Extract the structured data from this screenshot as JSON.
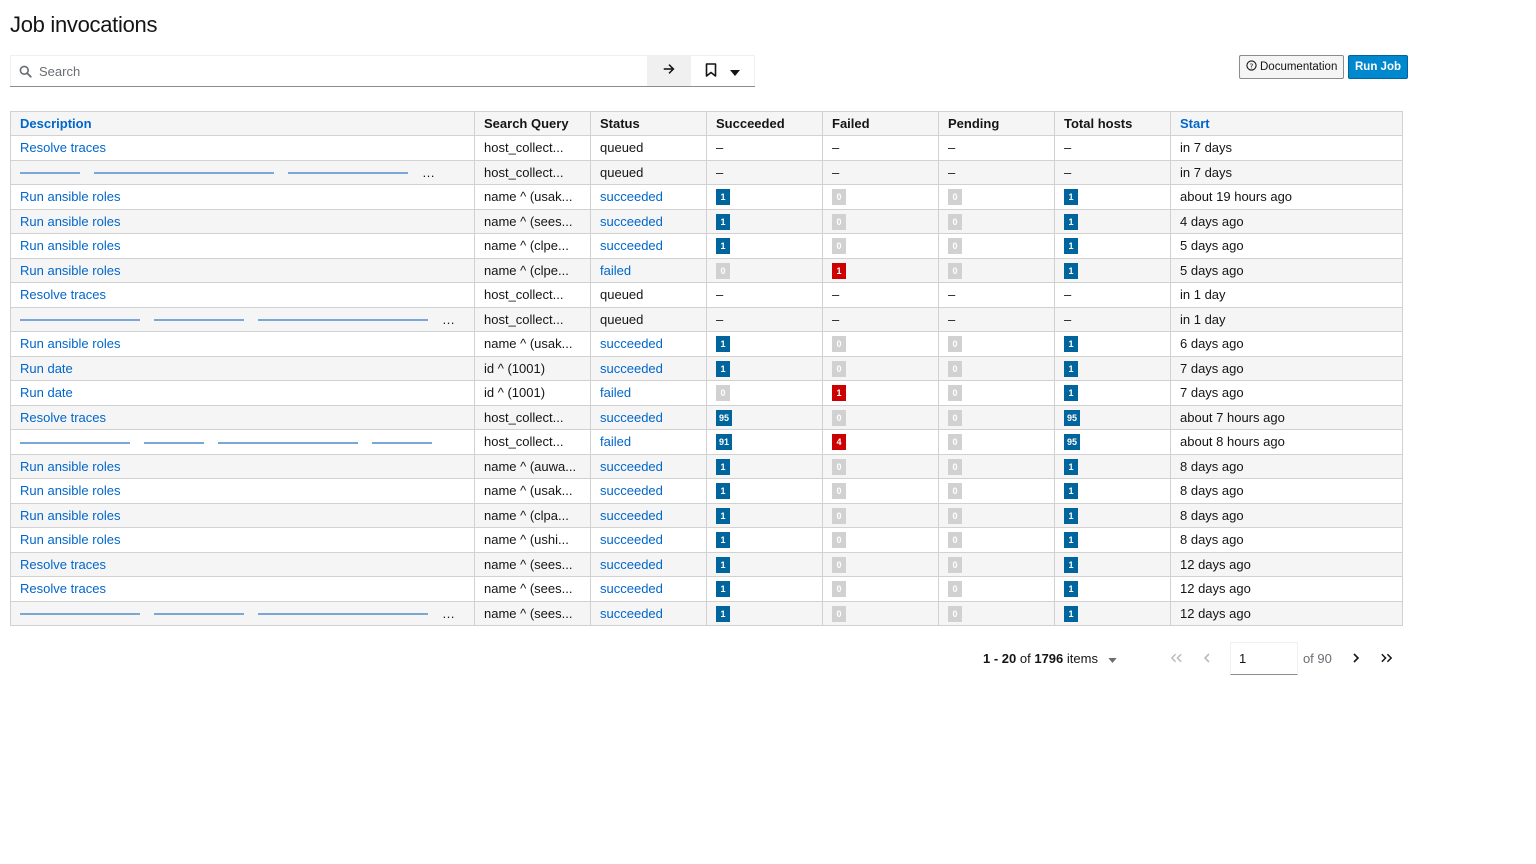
{
  "page": {
    "title": "Job invocations"
  },
  "search": {
    "placeholder": "Search"
  },
  "buttons": {
    "documentation": "Documentation",
    "run_job": "Run Job"
  },
  "table": {
    "columns": [
      "Description",
      "Search Query",
      "Status",
      "Succeeded",
      "Failed",
      "Pending",
      "Total hosts",
      "Start"
    ],
    "sortable_columns": [
      "Description",
      "Start"
    ],
    "rows": [
      {
        "description": "Resolve traces",
        "query": "host_collect...",
        "status": "queued",
        "succeeded": "–",
        "failed": "–",
        "pending": "–",
        "total": "–",
        "start": "in 7 days"
      },
      {
        "description": "",
        "redacted": true,
        "query": "host_collect...",
        "status": "queued",
        "succeeded": "–",
        "failed": "–",
        "pending": "–",
        "total": "–",
        "start": "in 7 days"
      },
      {
        "description": "Run ansible roles",
        "query": "name ^ (usak...",
        "status": "succeeded",
        "succeeded": "1",
        "failed": "0",
        "pending": "0",
        "total": "1",
        "start": "about 19 hours ago"
      },
      {
        "description": "Run ansible roles",
        "query": "name ^ (sees...",
        "status": "succeeded",
        "succeeded": "1",
        "failed": "0",
        "pending": "0",
        "total": "1",
        "start": "4 days ago"
      },
      {
        "description": "Run ansible roles",
        "query": "name ^ (clpe...",
        "status": "succeeded",
        "succeeded": "1",
        "failed": "0",
        "pending": "0",
        "total": "1",
        "start": "5 days ago"
      },
      {
        "description": "Run ansible roles",
        "query": "name ^ (clpe...",
        "status": "failed",
        "succeeded": "0",
        "failed": "1",
        "pending": "0",
        "total": "1",
        "start": "5 days ago"
      },
      {
        "description": "Resolve traces",
        "query": "host_collect...",
        "status": "queued",
        "succeeded": "–",
        "failed": "–",
        "pending": "–",
        "total": "–",
        "start": "in 1 day"
      },
      {
        "description": "",
        "redacted": true,
        "query": "host_collect...",
        "status": "queued",
        "succeeded": "–",
        "failed": "–",
        "pending": "–",
        "total": "–",
        "start": "in 1 day"
      },
      {
        "description": "Run ansible roles",
        "query": "name ^ (usak...",
        "status": "succeeded",
        "succeeded": "1",
        "failed": "0",
        "pending": "0",
        "total": "1",
        "start": "6 days ago"
      },
      {
        "description": "Run date",
        "query": "id ^ (1001)",
        "status": "succeeded",
        "succeeded": "1",
        "failed": "0",
        "pending": "0",
        "total": "1",
        "start": "7 days ago"
      },
      {
        "description": "Run date",
        "query": "id ^ (1001)",
        "status": "failed",
        "succeeded": "0",
        "failed": "1",
        "pending": "0",
        "total": "1",
        "start": "7 days ago"
      },
      {
        "description": "Resolve traces",
        "query": "host_collect...",
        "status": "succeeded",
        "succeeded": "95",
        "failed": "0",
        "pending": "0",
        "total": "95",
        "start": "about 7 hours ago"
      },
      {
        "description": "",
        "redacted": true,
        "query": "host_collect...",
        "status": "failed",
        "succeeded": "91",
        "failed": "4",
        "pending": "0",
        "total": "95",
        "start": "about 8 hours ago"
      },
      {
        "description": "Run ansible roles",
        "query": "name ^ (auwa...",
        "status": "succeeded",
        "succeeded": "1",
        "failed": "0",
        "pending": "0",
        "total": "1",
        "start": "8 days ago"
      },
      {
        "description": "Run ansible roles",
        "query": "name ^ (usak...",
        "status": "succeeded",
        "succeeded": "1",
        "failed": "0",
        "pending": "0",
        "total": "1",
        "start": "8 days ago"
      },
      {
        "description": "Run ansible roles",
        "query": "name ^ (clpa...",
        "status": "succeeded",
        "succeeded": "1",
        "failed": "0",
        "pending": "0",
        "total": "1",
        "start": "8 days ago"
      },
      {
        "description": "Run ansible roles",
        "query": "name ^ (ushi...",
        "status": "succeeded",
        "succeeded": "1",
        "failed": "0",
        "pending": "0",
        "total": "1",
        "start": "8 days ago"
      },
      {
        "description": "Resolve traces",
        "query": "name ^ (sees...",
        "status": "succeeded",
        "succeeded": "1",
        "failed": "0",
        "pending": "0",
        "total": "1",
        "start": "12 days ago"
      },
      {
        "description": "Resolve traces",
        "query": "name ^ (sees...",
        "status": "succeeded",
        "succeeded": "1",
        "failed": "0",
        "pending": "0",
        "total": "1",
        "start": "12 days ago"
      },
      {
        "description": "",
        "redacted": true,
        "query": "name ^ (sees...",
        "status": "succeeded",
        "succeeded": "1",
        "failed": "0",
        "pending": "0",
        "total": "1",
        "start": "12 days ago"
      }
    ]
  },
  "pagination": {
    "range": "1 - 20",
    "of_label": "of",
    "total": "1796",
    "items_label": "items",
    "current_page": "1",
    "of_pages": "of 90"
  },
  "colors": {
    "link": "#0066cc",
    "primary_button": "#0088ce",
    "badge_blue": "#00659c",
    "badge_gray": "#d1d1d1",
    "badge_red": "#cc0000"
  }
}
